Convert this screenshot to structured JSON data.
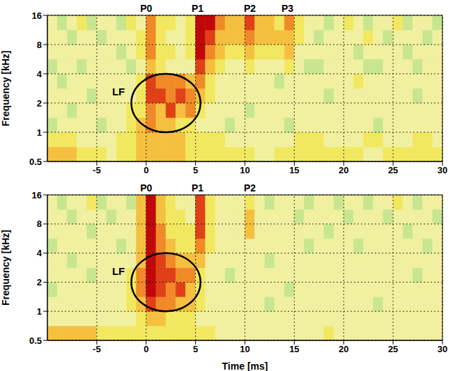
{
  "chart_data": [
    {
      "type": "heatmap",
      "y_label": "Frequency [kHz]",
      "xlim": [
        -10,
        30
      ],
      "xticks": [
        -5,
        0,
        5,
        10,
        15,
        20,
        25,
        30
      ],
      "ylim": [
        0.5,
        16
      ],
      "yticks": [
        0.5,
        1,
        2,
        4,
        8,
        16
      ],
      "log": "y",
      "grid": true,
      "color_range": [
        0,
        9
      ],
      "x_bins": [
        -10,
        -9,
        -8,
        -7,
        -6,
        -5,
        -4,
        -3,
        -2,
        -1,
        0,
        1,
        2,
        3,
        4,
        5,
        6,
        7,
        8,
        9,
        10,
        11,
        12,
        13,
        14,
        15,
        16,
        17,
        18,
        19,
        20,
        21,
        22,
        23,
        24,
        25,
        26,
        27,
        28,
        29,
        30
      ],
      "y_bins": [
        0.5,
        0.707,
        1,
        1.414,
        2,
        2.828,
        4,
        5.657,
        8,
        11.31,
        16
      ],
      "cells": [
        [
          6,
          6,
          6,
          5,
          5,
          5,
          4,
          5,
          5,
          6,
          6,
          6,
          6,
          6,
          5,
          5,
          5,
          5,
          5,
          5,
          5,
          4,
          4,
          5,
          5,
          5,
          5,
          5,
          5,
          5,
          5,
          5,
          4,
          4,
          5,
          5,
          5,
          5,
          5,
          5
        ],
        [
          5,
          5,
          5,
          4,
          4,
          4,
          4,
          5,
          5,
          6,
          6,
          6,
          6,
          6,
          5,
          5,
          5,
          5,
          4,
          4,
          4,
          4,
          4,
          4,
          4,
          5,
          5,
          5,
          4,
          4,
          4,
          4,
          5,
          5,
          4,
          4,
          4,
          5,
          5,
          4
        ],
        [
          3,
          4,
          4,
          4,
          4,
          3,
          4,
          4,
          5,
          6,
          7,
          6,
          6,
          5,
          5,
          4,
          4,
          4,
          3,
          4,
          4,
          4,
          4,
          4,
          3,
          4,
          4,
          4,
          4,
          4,
          4,
          4,
          4,
          3,
          4,
          4,
          4,
          4,
          4,
          4
        ],
        [
          4,
          4,
          3,
          4,
          4,
          4,
          4,
          4,
          5,
          5,
          7,
          6,
          8,
          6,
          7,
          5,
          4,
          4,
          4,
          4,
          3,
          4,
          4,
          4,
          4,
          4,
          4,
          4,
          4,
          4,
          4,
          4,
          4,
          4,
          4,
          4,
          4,
          4,
          4,
          4
        ],
        [
          4,
          4,
          4,
          4,
          3,
          4,
          4,
          4,
          4,
          5,
          8,
          8,
          7,
          8,
          7,
          6,
          5,
          4,
          4,
          4,
          4,
          4,
          4,
          4,
          4,
          4,
          4,
          4,
          3,
          4,
          4,
          4,
          4,
          4,
          4,
          4,
          4,
          3,
          4,
          4
        ],
        [
          4,
          3,
          4,
          4,
          4,
          4,
          4,
          4,
          4,
          5,
          8,
          7,
          7,
          7,
          6,
          7,
          5,
          4,
          4,
          4,
          4,
          4,
          4,
          3,
          4,
          4,
          4,
          4,
          4,
          4,
          4,
          5,
          4,
          4,
          4,
          4,
          4,
          4,
          4,
          4
        ],
        [
          3,
          4,
          4,
          3,
          4,
          4,
          4,
          4,
          3,
          4,
          6,
          5,
          4,
          4,
          4,
          8,
          6,
          5,
          4,
          4,
          5,
          4,
          4,
          4,
          5,
          4,
          3,
          3,
          4,
          4,
          4,
          4,
          3,
          3,
          4,
          4,
          4,
          3,
          4,
          4
        ],
        [
          4,
          4,
          4,
          4,
          4,
          4,
          4,
          3,
          4,
          5,
          7,
          5,
          5,
          4,
          5,
          9,
          7,
          6,
          5,
          5,
          6,
          5,
          5,
          5,
          6,
          4,
          4,
          4,
          4,
          4,
          4,
          3,
          4,
          4,
          4,
          4,
          3,
          4,
          4,
          4
        ],
        [
          4,
          4,
          3,
          4,
          4,
          3,
          4,
          4,
          4,
          5,
          7,
          5,
          4,
          4,
          5,
          9,
          8,
          6,
          6,
          6,
          7,
          6,
          6,
          6,
          6,
          5,
          4,
          3,
          4,
          4,
          4,
          4,
          5,
          4,
          3,
          4,
          4,
          4,
          3,
          4
        ],
        [
          4,
          3,
          4,
          5,
          3,
          4,
          4,
          3,
          5,
          4,
          7,
          5,
          5,
          4,
          5,
          9,
          9,
          7,
          6,
          6,
          8,
          6,
          6,
          5,
          7,
          5,
          4,
          4,
          3,
          4,
          5,
          4,
          3,
          4,
          4,
          5,
          3,
          4,
          4,
          3
        ]
      ],
      "peaks": [
        {
          "text": "P0",
          "x": 0
        },
        {
          "text": "P1",
          "x": 5.2
        },
        {
          "text": "P2",
          "x": 10.5
        },
        {
          "text": "P3",
          "x": 14.3
        }
      ],
      "region": {
        "text": "LF",
        "x": -2.8,
        "y": 2.6,
        "x_range": [
          -1.5,
          5.5
        ],
        "y_range": [
          1,
          4
        ]
      }
    },
    {
      "type": "heatmap",
      "x_label": "Time [ms]",
      "y_label": "Frequency [kHz]",
      "xlim": [
        -10,
        30
      ],
      "xticks": [
        -5,
        0,
        5,
        10,
        15,
        20,
        25,
        30
      ],
      "ylim": [
        0.5,
        16
      ],
      "yticks": [
        0.5,
        1,
        2,
        4,
        8,
        16
      ],
      "log": "y",
      "grid": true,
      "color_range": [
        0,
        9
      ],
      "x_bins": [
        -10,
        -9,
        -8,
        -7,
        -6,
        -5,
        -4,
        -3,
        -2,
        -1,
        0,
        1,
        2,
        3,
        4,
        5,
        6,
        7,
        8,
        9,
        10,
        11,
        12,
        13,
        14,
        15,
        16,
        17,
        18,
        19,
        20,
        21,
        22,
        23,
        24,
        25,
        26,
        27,
        28,
        29,
        30
      ],
      "y_bins": [
        0.5,
        0.707,
        1,
        1.414,
        2,
        2.828,
        4,
        5.657,
        8,
        11.31,
        16
      ],
      "cells": [
        [
          6,
          6,
          6,
          6,
          6,
          5,
          5,
          5,
          5,
          5,
          5,
          5,
          5,
          5,
          5,
          5,
          5,
          4,
          4,
          4,
          4,
          4,
          4,
          4,
          4,
          4,
          4,
          4,
          5,
          4,
          4,
          4,
          4,
          4,
          4,
          4,
          4,
          4,
          4,
          4
        ],
        [
          4,
          4,
          4,
          4,
          4,
          4,
          4,
          4,
          4,
          5,
          6,
          6,
          5,
          5,
          5,
          4,
          4,
          4,
          4,
          4,
          4,
          4,
          4,
          4,
          4,
          4,
          4,
          4,
          4,
          4,
          4,
          4,
          4,
          4,
          4,
          4,
          4,
          4,
          4,
          4
        ],
        [
          4,
          4,
          4,
          4,
          4,
          4,
          4,
          4,
          5,
          6,
          8,
          7,
          7,
          6,
          6,
          5,
          4,
          4,
          4,
          4,
          4,
          4,
          3,
          4,
          4,
          4,
          4,
          4,
          4,
          4,
          4,
          4,
          4,
          3,
          4,
          4,
          4,
          4,
          4,
          4
        ],
        [
          3,
          4,
          4,
          4,
          4,
          4,
          4,
          4,
          5,
          7,
          9,
          8,
          7,
          8,
          6,
          5,
          4,
          4,
          4,
          4,
          4,
          4,
          4,
          4,
          3,
          4,
          4,
          4,
          4,
          4,
          4,
          4,
          4,
          4,
          4,
          4,
          4,
          4,
          4,
          4
        ],
        [
          4,
          4,
          4,
          4,
          3,
          4,
          4,
          4,
          5,
          7,
          9,
          8,
          8,
          7,
          7,
          5,
          4,
          4,
          3,
          4,
          4,
          4,
          4,
          4,
          4,
          4,
          4,
          4,
          4,
          4,
          4,
          4,
          4,
          4,
          4,
          4,
          4,
          3,
          4,
          4
        ],
        [
          4,
          4,
          3,
          4,
          4,
          4,
          4,
          4,
          4,
          6,
          9,
          8,
          7,
          6,
          6,
          6,
          4,
          4,
          4,
          4,
          4,
          4,
          3,
          4,
          4,
          4,
          4,
          4,
          4,
          4,
          4,
          4,
          4,
          4,
          4,
          4,
          4,
          4,
          4,
          4
        ],
        [
          3,
          4,
          4,
          4,
          4,
          4,
          4,
          3,
          4,
          6,
          9,
          7,
          6,
          5,
          5,
          7,
          5,
          4,
          4,
          4,
          4,
          4,
          4,
          4,
          4,
          4,
          3,
          4,
          4,
          4,
          4,
          3,
          4,
          4,
          4,
          4,
          4,
          4,
          3,
          4
        ],
        [
          4,
          4,
          4,
          4,
          3,
          4,
          4,
          4,
          4,
          6,
          9,
          7,
          5,
          5,
          5,
          8,
          5,
          4,
          4,
          4,
          6,
          4,
          4,
          4,
          4,
          4,
          4,
          4,
          3,
          4,
          4,
          4,
          4,
          4,
          4,
          4,
          3,
          4,
          4,
          4
        ],
        [
          4,
          4,
          3,
          4,
          4,
          4,
          3,
          4,
          4,
          6,
          9,
          6,
          5,
          5,
          4,
          8,
          5,
          4,
          4,
          4,
          6,
          4,
          4,
          4,
          4,
          3,
          4,
          4,
          4,
          4,
          3,
          4,
          4,
          4,
          3,
          4,
          4,
          4,
          4,
          3
        ],
        [
          4,
          3,
          4,
          4,
          5,
          3,
          4,
          4,
          3,
          6,
          9,
          6,
          5,
          4,
          4,
          8,
          5,
          4,
          4,
          4,
          5,
          4,
          3,
          4,
          4,
          4,
          3,
          4,
          4,
          3,
          4,
          4,
          3,
          4,
          4,
          5,
          4,
          3,
          4,
          4
        ]
      ],
      "peaks": [
        {
          "text": "P0",
          "x": 0
        },
        {
          "text": "P1",
          "x": 5.2
        },
        {
          "text": "P2",
          "x": 10.5
        }
      ],
      "region": {
        "text": "LF",
        "x": -2.8,
        "y": 2.6,
        "x_range": [
          -1.5,
          5.5
        ],
        "y_range": [
          1,
          4
        ]
      }
    }
  ]
}
